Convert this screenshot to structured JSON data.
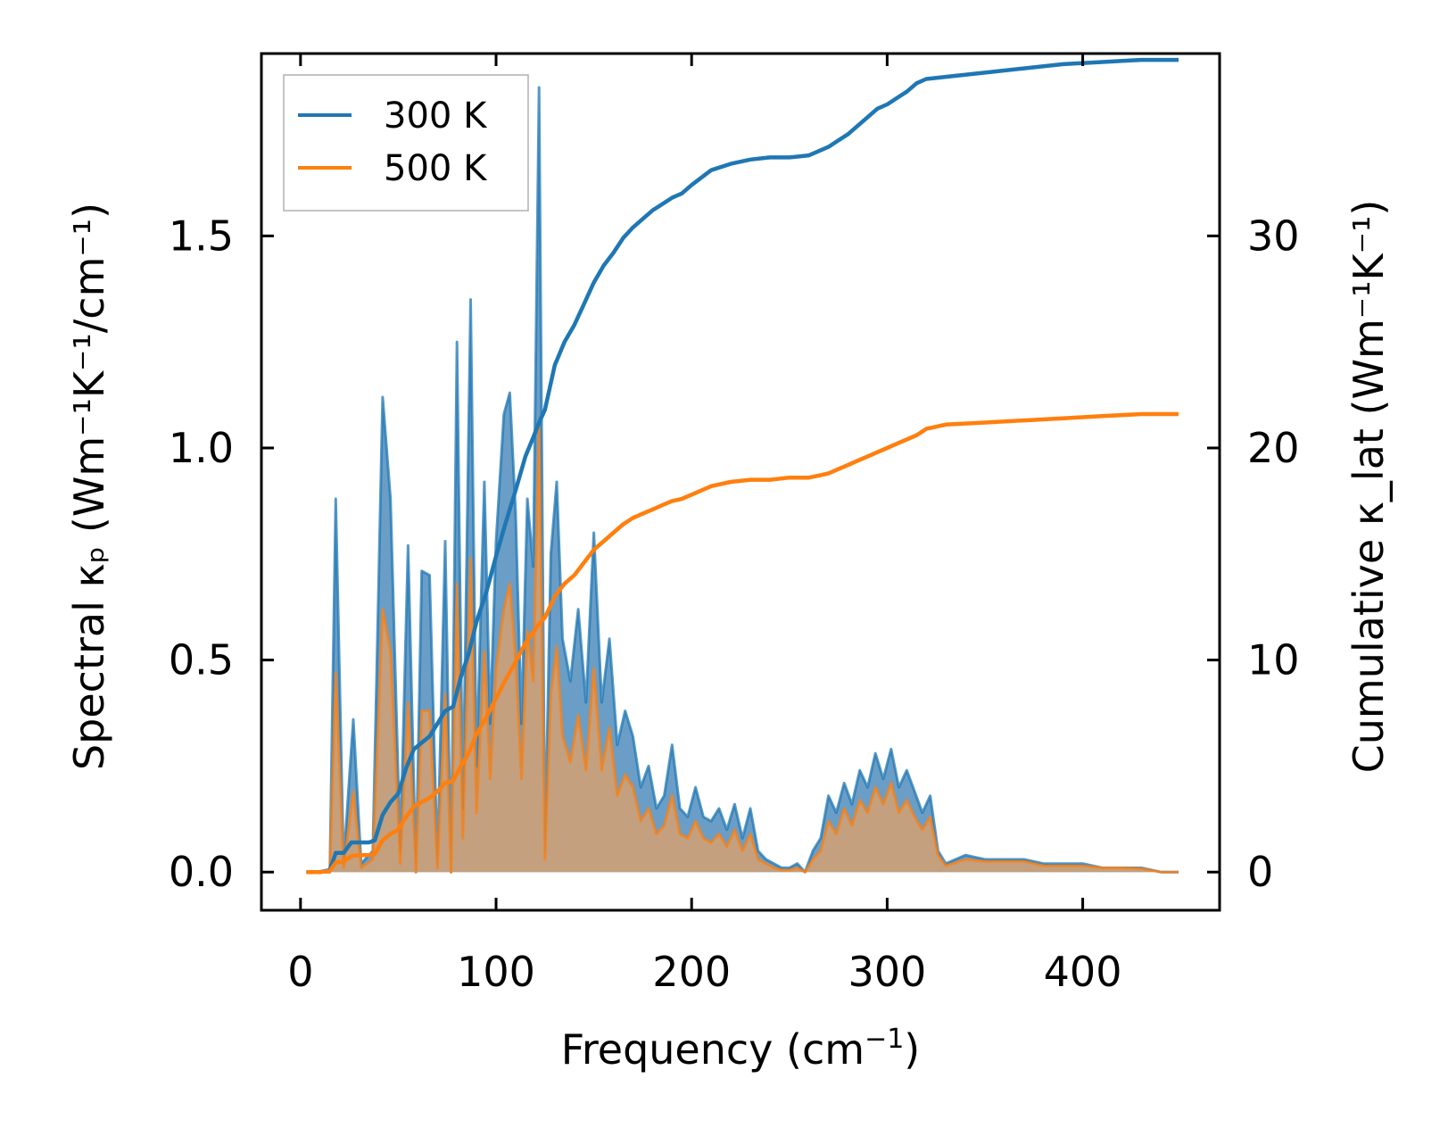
{
  "chart_data": {
    "type": "line",
    "title": "",
    "xlabel": "Frequency (cm⁻¹)",
    "xlabel_parts": {
      "base": "Frequency (cm",
      "sup": "−1",
      "tail": ")"
    },
    "ylabel_left": "Spectral κₚ (Wm⁻¹K⁻¹/cm⁻¹)",
    "ylabel_right": "Cumulative κ_lat (Wm⁻¹K⁻¹)",
    "xlim": [
      -20,
      470
    ],
    "ylim_left": [
      -0.09,
      1.93
    ],
    "ylim_right": [
      -1.8,
      38.6
    ],
    "x_ticks": [
      0,
      100,
      200,
      300,
      400
    ],
    "x_tick_labels": [
      "0",
      "100",
      "200",
      "300",
      "400"
    ],
    "y_left_ticks": [
      0.0,
      0.5,
      1.0,
      1.5
    ],
    "y_left_tick_labels": [
      "0.0",
      "0.5",
      "1.0",
      "1.5"
    ],
    "y_right_ticks": [
      0,
      10,
      20,
      30
    ],
    "y_right_tick_labels": [
      "0",
      "10",
      "20",
      "30"
    ],
    "legend": {
      "position": "top-left",
      "entries": [
        "300 K",
        "500 K"
      ]
    },
    "colors": {
      "300K": "#1f77b4",
      "500K": "#ff7f0e",
      "fill_300K": "#6a9ec7",
      "fill_500K": "#c9a07a"
    },
    "spectral": {
      "x": [
        3,
        15,
        18,
        22,
        27,
        31,
        37,
        42,
        46,
        51,
        55,
        59,
        62,
        66,
        70,
        74,
        77,
        80,
        83,
        87,
        90,
        94,
        97,
        100,
        104,
        107,
        110,
        113,
        116,
        119,
        122,
        125,
        128,
        131,
        134,
        138,
        142,
        146,
        150,
        154,
        158,
        162,
        166,
        170,
        174,
        178,
        182,
        186,
        190,
        194,
        198,
        202,
        206,
        210,
        214,
        218,
        222,
        226,
        230,
        234,
        238,
        242,
        246,
        250,
        254,
        258,
        262,
        266,
        270,
        274,
        278,
        282,
        286,
        290,
        294,
        298,
        302,
        306,
        310,
        314,
        318,
        322,
        326,
        330,
        340,
        350,
        360,
        370,
        380,
        390,
        400,
        410,
        420,
        430,
        440,
        449
      ],
      "series": [
        {
          "name": "300 K",
          "values": [
            0.0,
            0.0,
            0.88,
            0.02,
            0.36,
            0.02,
            0.05,
            1.12,
            0.88,
            0.05,
            0.77,
            0.0,
            0.71,
            0.7,
            0.02,
            0.78,
            0.0,
            1.25,
            0.15,
            1.35,
            0.25,
            0.92,
            0.35,
            0.78,
            1.08,
            1.13,
            0.85,
            0.35,
            0.88,
            0.72,
            1.85,
            0.05,
            0.75,
            0.92,
            0.55,
            0.45,
            0.62,
            0.4,
            0.8,
            0.4,
            0.55,
            0.3,
            0.38,
            0.32,
            0.2,
            0.25,
            0.15,
            0.18,
            0.3,
            0.15,
            0.13,
            0.2,
            0.13,
            0.12,
            0.15,
            0.1,
            0.16,
            0.08,
            0.15,
            0.05,
            0.03,
            0.02,
            0.01,
            0.01,
            0.02,
            0.0,
            0.05,
            0.08,
            0.18,
            0.14,
            0.21,
            0.16,
            0.24,
            0.2,
            0.28,
            0.22,
            0.29,
            0.2,
            0.24,
            0.19,
            0.14,
            0.18,
            0.05,
            0.02,
            0.04,
            0.03,
            0.03,
            0.03,
            0.02,
            0.02,
            0.02,
            0.01,
            0.01,
            0.01,
            0.0,
            0.0
          ]
        },
        {
          "name": "500 K",
          "values": [
            0.0,
            0.0,
            0.47,
            0.01,
            0.19,
            0.01,
            0.03,
            0.62,
            0.52,
            0.02,
            0.4,
            0.0,
            0.38,
            0.38,
            0.01,
            0.42,
            0.0,
            0.68,
            0.08,
            0.74,
            0.14,
            0.52,
            0.22,
            0.48,
            0.62,
            0.68,
            0.5,
            0.22,
            0.57,
            0.45,
            1.05,
            0.03,
            0.42,
            0.53,
            0.32,
            0.26,
            0.37,
            0.24,
            0.48,
            0.24,
            0.34,
            0.18,
            0.23,
            0.2,
            0.12,
            0.15,
            0.09,
            0.11,
            0.18,
            0.09,
            0.08,
            0.12,
            0.08,
            0.07,
            0.09,
            0.06,
            0.1,
            0.05,
            0.09,
            0.03,
            0.02,
            0.01,
            0.005,
            0.005,
            0.01,
            0.0,
            0.03,
            0.05,
            0.12,
            0.09,
            0.15,
            0.11,
            0.17,
            0.14,
            0.2,
            0.16,
            0.21,
            0.14,
            0.17,
            0.13,
            0.1,
            0.13,
            0.04,
            0.015,
            0.03,
            0.025,
            0.025,
            0.025,
            0.015,
            0.015,
            0.015,
            0.01,
            0.01,
            0.008,
            0.0,
            0.0
          ]
        }
      ]
    },
    "cumulative": {
      "x": [
        3,
        10,
        15,
        18,
        22,
        26,
        30,
        35,
        38,
        42,
        46,
        50,
        54,
        58,
        62,
        66,
        70,
        74,
        78,
        82,
        86,
        90,
        95,
        100,
        105,
        110,
        115,
        119,
        122,
        125,
        130,
        135,
        140,
        145,
        150,
        155,
        160,
        165,
        170,
        175,
        180,
        185,
        190,
        195,
        200,
        210,
        220,
        230,
        240,
        250,
        260,
        265,
        270,
        275,
        280,
        285,
        290,
        295,
        300,
        305,
        310,
        315,
        320,
        330,
        350,
        370,
        390,
        410,
        430,
        449
      ],
      "series": [
        {
          "name": "300 K",
          "values": [
            0.0,
            0.0,
            0.1,
            0.9,
            0.9,
            1.4,
            1.4,
            1.4,
            1.5,
            2.7,
            3.3,
            3.7,
            4.9,
            5.8,
            6.1,
            6.4,
            7.0,
            7.6,
            7.8,
            9.2,
            10.3,
            11.8,
            13.2,
            14.9,
            16.5,
            18.0,
            19.6,
            20.5,
            21.2,
            21.8,
            23.9,
            25.0,
            25.8,
            26.8,
            27.8,
            28.6,
            29.2,
            29.9,
            30.4,
            30.8,
            31.2,
            31.5,
            31.8,
            32.0,
            32.4,
            33.1,
            33.4,
            33.6,
            33.7,
            33.7,
            33.8,
            34.0,
            34.2,
            34.5,
            34.8,
            35.2,
            35.6,
            36.0,
            36.2,
            36.5,
            36.8,
            37.2,
            37.4,
            37.5,
            37.7,
            37.9,
            38.1,
            38.2,
            38.3,
            38.3
          ]
        },
        {
          "name": "500 K",
          "values": [
            0.0,
            0.0,
            0.05,
            0.45,
            0.5,
            0.75,
            0.8,
            0.8,
            0.85,
            1.5,
            1.8,
            2.0,
            2.6,
            3.1,
            3.3,
            3.5,
            3.8,
            4.2,
            4.3,
            5.0,
            5.6,
            6.5,
            7.3,
            8.2,
            9.1,
            9.9,
            10.8,
            11.3,
            11.7,
            12.0,
            13.0,
            13.6,
            14.0,
            14.6,
            15.2,
            15.6,
            16.0,
            16.4,
            16.7,
            16.9,
            17.1,
            17.3,
            17.5,
            17.6,
            17.8,
            18.2,
            18.4,
            18.5,
            18.5,
            18.6,
            18.6,
            18.7,
            18.8,
            19.0,
            19.2,
            19.4,
            19.6,
            19.8,
            20.0,
            20.2,
            20.4,
            20.6,
            20.9,
            21.1,
            21.2,
            21.3,
            21.4,
            21.5,
            21.6,
            21.6
          ]
        }
      ]
    }
  }
}
